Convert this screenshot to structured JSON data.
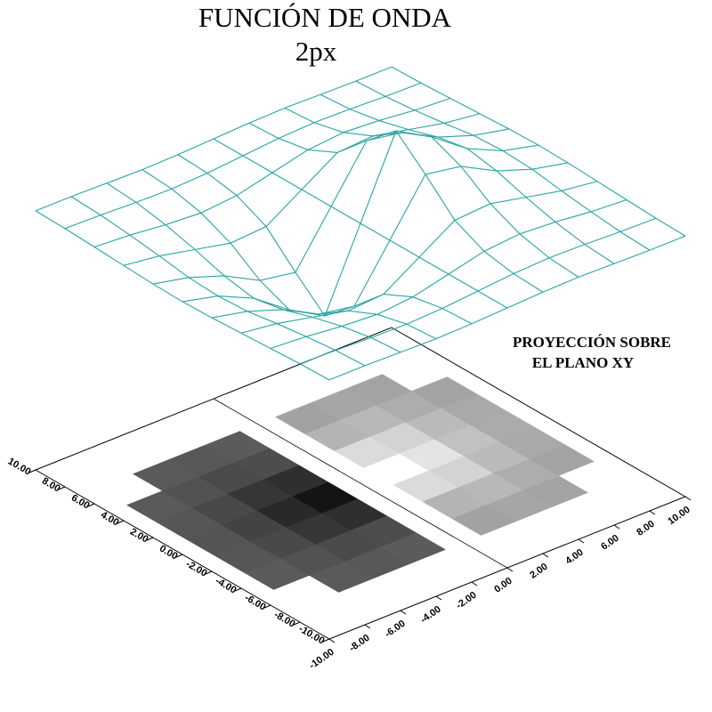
{
  "chart_data": {
    "type": "surface",
    "title": "FUNCIÓN DE ONDA",
    "subtitle": "2px",
    "annotation": [
      "PROYECCIÓN SOBRE",
      "EL PLANO XY"
    ],
    "x": [
      -10,
      -8,
      -6,
      -4,
      -2,
      0,
      2,
      4,
      6,
      8,
      10
    ],
    "y": [
      -10,
      -8,
      -6,
      -4,
      -2,
      0,
      2,
      4,
      6,
      8,
      10
    ],
    "z": [
      [
        -0.01,
        -0.01,
        -0.02,
        -0.03,
        -0.02,
        0,
        0.02,
        0.03,
        0.02,
        0.01,
        0.01
      ],
      [
        -0.02,
        -0.03,
        -0.05,
        -0.06,
        -0.04,
        0,
        0.04,
        0.06,
        0.05,
        0.03,
        0.02
      ],
      [
        -0.04,
        -0.07,
        -0.12,
        -0.15,
        -0.11,
        0,
        0.11,
        0.15,
        0.12,
        0.07,
        0.04
      ],
      [
        -0.06,
        -0.12,
        -0.22,
        -0.32,
        -0.29,
        0,
        0.29,
        0.32,
        0.22,
        0.12,
        0.06
      ],
      [
        -0.08,
        -0.18,
        -0.34,
        -0.58,
        -0.66,
        0,
        0.66,
        0.58,
        0.34,
        0.18,
        0.08
      ],
      [
        -0.09,
        -0.2,
        -0.41,
        -0.74,
        -1,
        0,
        1,
        0.74,
        0.41,
        0.2,
        0.09
      ],
      [
        -0.08,
        -0.18,
        -0.34,
        -0.58,
        -0.66,
        0,
        0.66,
        0.58,
        0.34,
        0.18,
        0.08
      ],
      [
        -0.06,
        -0.12,
        -0.22,
        -0.32,
        -0.29,
        0,
        0.29,
        0.32,
        0.22,
        0.12,
        0.06
      ],
      [
        -0.04,
        -0.07,
        -0.12,
        -0.15,
        -0.11,
        0,
        0.11,
        0.15,
        0.12,
        0.07,
        0.04
      ],
      [
        -0.02,
        -0.03,
        -0.05,
        -0.06,
        -0.04,
        0,
        0.04,
        0.06,
        0.05,
        0.03,
        0.02
      ],
      [
        -0.01,
        -0.01,
        -0.02,
        -0.03,
        -0.02,
        0,
        0.02,
        0.03,
        0.02,
        0.01,
        0.01
      ]
    ],
    "mesh_color": "#2aa3a3",
    "xlim": [
      -10,
      10
    ],
    "ylim": [
      -10,
      10
    ],
    "xticks": [
      {
        "value": -10,
        "label": "-10.00"
      },
      {
        "value": -8,
        "label": "-8.00"
      },
      {
        "value": -6,
        "label": "-6.00"
      },
      {
        "value": -4,
        "label": "-4.00"
      },
      {
        "value": -2,
        "label": "-2.00"
      },
      {
        "value": 0,
        "label": "0.00"
      },
      {
        "value": 2,
        "label": "2.00"
      },
      {
        "value": 4,
        "label": "4.00"
      },
      {
        "value": 6,
        "label": "6.00"
      },
      {
        "value": 8,
        "label": "8.00"
      },
      {
        "value": 10,
        "label": "10.00"
      }
    ],
    "yticks": [
      {
        "value": -10,
        "label": "-10.00"
      },
      {
        "value": -8,
        "label": "-8.00"
      },
      {
        "value": -6,
        "label": "-6.00"
      },
      {
        "value": -4,
        "label": "-4.00"
      },
      {
        "value": -2,
        "label": "-2.00"
      },
      {
        "value": 0,
        "label": "0.00"
      },
      {
        "value": 2,
        "label": "2.00"
      },
      {
        "value": 4,
        "label": "4.00"
      },
      {
        "value": 6,
        "label": "6.00"
      },
      {
        "value": 8,
        "label": "8.00"
      },
      {
        "value": 10,
        "label": "10.00"
      }
    ]
  }
}
